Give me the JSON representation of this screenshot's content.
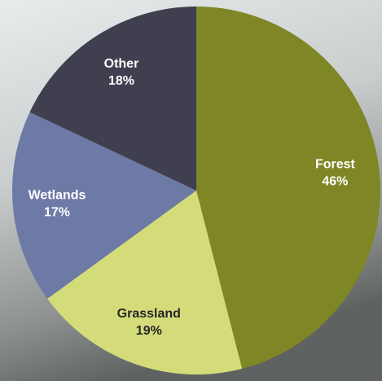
{
  "chart_data": {
    "type": "pie",
    "categories": [
      "Forest",
      "Grassland",
      "Wetlands",
      "Other"
    ],
    "values": [
      46,
      19,
      17,
      18
    ],
    "value_labels": [
      "46%",
      "19%",
      "17%",
      "18%"
    ],
    "colors": [
      "#7f8626",
      "#d4dc7a",
      "#6e7aa6",
      "#3f3f4f"
    ]
  }
}
